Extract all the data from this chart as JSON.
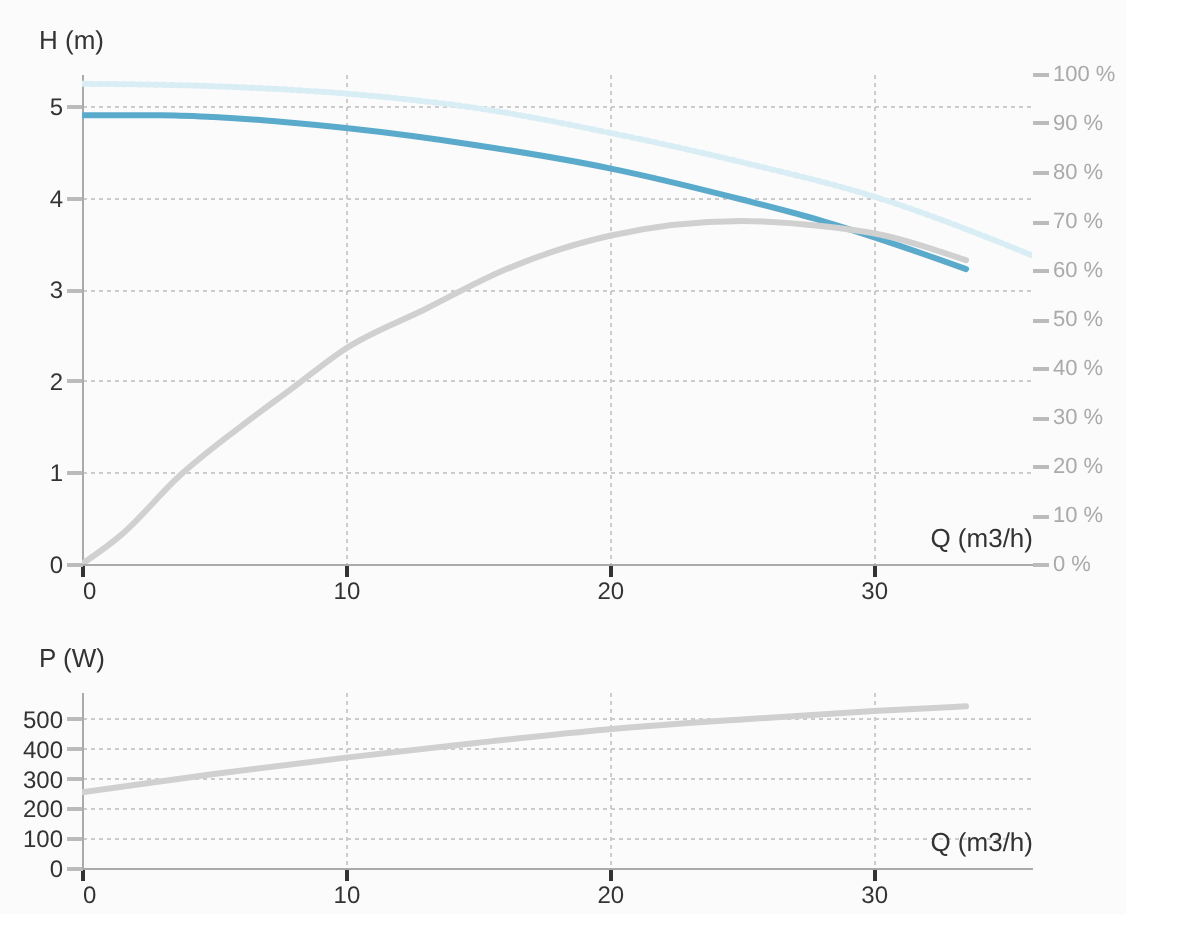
{
  "chart_data": [
    {
      "type": "line",
      "ylabel": "H (m)",
      "xlabel": "Q (m3/h)",
      "xlim": [
        0,
        36
      ],
      "xticks": [
        0,
        10,
        20,
        30
      ],
      "ylim": [
        0,
        5.35
      ],
      "yticks": [
        0,
        1,
        2,
        3,
        4,
        5
      ],
      "y2lim": [
        0,
        100
      ],
      "y2ticks": [
        {
          "value": 0,
          "label": "0 %"
        },
        {
          "value": 10,
          "label": "10 %"
        },
        {
          "value": 20,
          "label": "20 %"
        },
        {
          "value": 30,
          "label": "30 %"
        },
        {
          "value": 40,
          "label": "40 %"
        },
        {
          "value": 50,
          "label": "50 %"
        },
        {
          "value": 60,
          "label": "60 %"
        },
        {
          "value": 70,
          "label": "70 %"
        },
        {
          "value": 80,
          "label": "80 %"
        },
        {
          "value": 90,
          "label": "90 %"
        },
        {
          "value": 100,
          "label": "100 %"
        }
      ],
      "grid": true,
      "legend": false,
      "series": [
        {
          "color": "#5aaacb",
          "line_style": "solid",
          "x": [
            0,
            3,
            5,
            10,
            15,
            20,
            25,
            28,
            30,
            33.5
          ],
          "values": [
            4.9,
            4.9,
            4.88,
            4.76,
            4.57,
            4.32,
            3.98,
            3.75,
            3.57,
            3.22
          ]
        },
        {
          "color": "#d0d0d0",
          "axis": "y2",
          "line_style": "solid",
          "x": [
            0,
            1.5,
            3.7,
            6,
            8,
            10,
            13,
            16,
            20,
            25,
            28,
            30,
            33.5
          ],
          "values": [
            0,
            6,
            18,
            28,
            36,
            44,
            52,
            60,
            67,
            70,
            69,
            67.5,
            62
          ]
        },
        {
          "color": "#d9edf5",
          "axis": "y2",
          "line_style": "dotted",
          "x": [
            0,
            5,
            10,
            15,
            20,
            25,
            30,
            36
          ],
          "values": [
            98,
            97.5,
            96,
            93,
            88,
            82,
            75,
            63
          ]
        }
      ]
    },
    {
      "type": "line",
      "ylabel": "P (W)",
      "xlabel": "Q (m3/h)",
      "xlim": [
        0,
        36
      ],
      "xticks": [
        0,
        10,
        20,
        30
      ],
      "ylim": [
        0,
        590
      ],
      "yticks": [
        0,
        100,
        200,
        300,
        400,
        500
      ],
      "grid": true,
      "legend": false,
      "series": [
        {
          "color": "#d0d0d0",
          "line_style": "solid",
          "x": [
            0,
            5,
            10,
            15,
            20,
            25,
            30,
            33.5
          ],
          "values": [
            254,
            315,
            370,
            420,
            465,
            498,
            526,
            542
          ]
        }
      ]
    }
  ]
}
